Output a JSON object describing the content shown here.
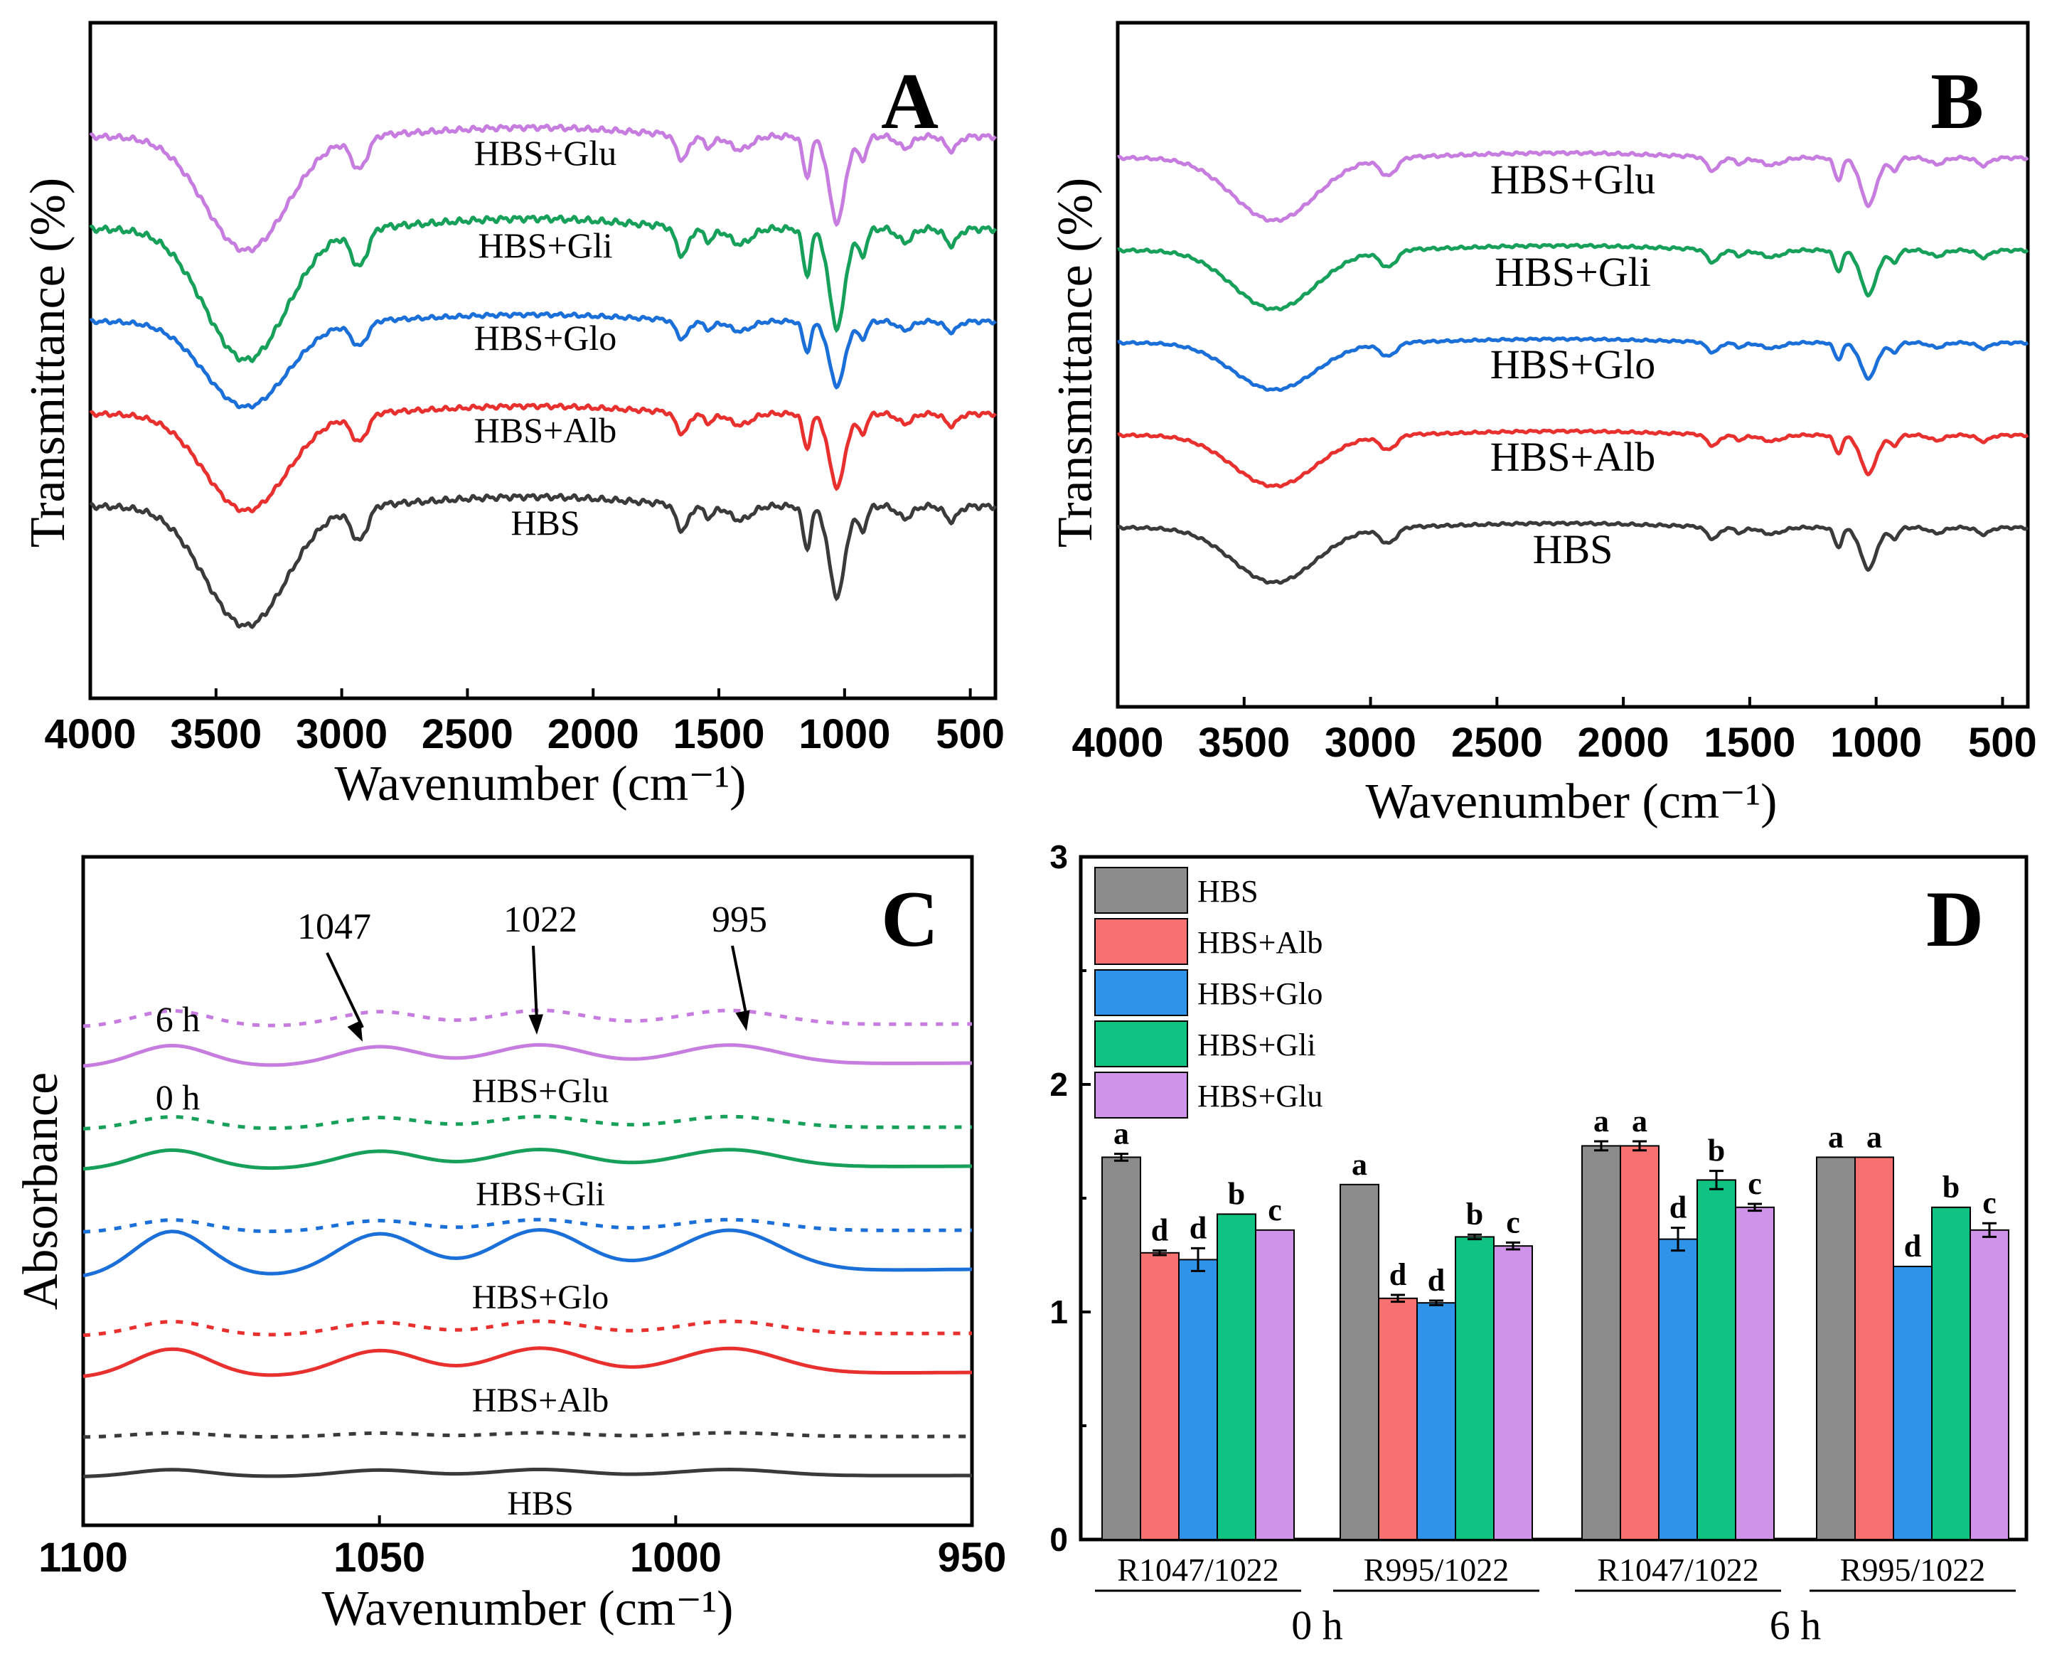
{
  "figure": {
    "panels": [
      "A",
      "B",
      "C",
      "D"
    ]
  },
  "chart_data": [
    {
      "panel": "A",
      "type": "line",
      "title": "",
      "xlabel": "Wavenumber (cm⁻¹)",
      "ylabel": "Transmittance (%)",
      "xlim": [
        4000,
        400
      ],
      "x_reversed": true,
      "xticks": [
        4000,
        3500,
        3000,
        2500,
        2000,
        1500,
        1000,
        500
      ],
      "yticks_shown": false,
      "series": [
        {
          "name": "HBS+Glu",
          "color": "#c77de0",
          "offset": 4,
          "amp": 1.0
        },
        {
          "name": "HBS+Gli",
          "color": "#17a05a",
          "offset": 3,
          "amp": 1.15
        },
        {
          "name": "HBS+Glo",
          "color": "#1a6fd8",
          "offset": 2,
          "amp": 0.75
        },
        {
          "name": "HBS+Alb",
          "color": "#e8302e",
          "offset": 1,
          "amp": 0.85
        },
        {
          "name": "HBS",
          "color": "#3a3a3a",
          "offset": 0,
          "amp": 1.05
        }
      ]
    },
    {
      "panel": "B",
      "type": "line",
      "title": "",
      "xlabel": "Wavenumber (cm⁻¹)",
      "ylabel": "Transmittance (%)",
      "xlim": [
        4000,
        400
      ],
      "x_reversed": true,
      "xticks": [
        4000,
        3500,
        3000,
        2500,
        2000,
        1500,
        1000,
        500
      ],
      "yticks_shown": false,
      "series": [
        {
          "name": "HBS+Glu",
          "color": "#c77de0",
          "offset": 4,
          "amp": 0.8
        },
        {
          "name": "HBS+Gli",
          "color": "#17a05a",
          "offset": 3,
          "amp": 0.75
        },
        {
          "name": "HBS+Glo",
          "color": "#1a6fd8",
          "offset": 2,
          "amp": 0.6
        },
        {
          "name": "HBS+Alb",
          "color": "#e8302e",
          "offset": 1,
          "amp": 0.65
        },
        {
          "name": "HBS",
          "color": "#3a3a3a",
          "offset": 0,
          "amp": 0.7
        }
      ]
    },
    {
      "panel": "C",
      "type": "line",
      "title": "",
      "xlabel": "Wavenumber (cm⁻¹)",
      "ylabel": "Absorbance",
      "xlim": [
        1100,
        950
      ],
      "x_reversed": true,
      "xticks": [
        1100,
        1050,
        1000,
        950
      ],
      "yticks_shown": false,
      "peaks": [
        1047,
        1022,
        995
      ],
      "time_labels": [
        "6 h",
        "0 h"
      ],
      "series": [
        {
          "name": "HBS+Glu",
          "color": "#c77de0",
          "offset": 4,
          "amp_0h": 0.6,
          "amp_6h": 0.45
        },
        {
          "name": "HBS+Gli",
          "color": "#17a05a",
          "offset": 3,
          "amp_0h": 0.55,
          "amp_6h": 0.35
        },
        {
          "name": "HBS+Glo",
          "color": "#1a6fd8",
          "offset": 2,
          "amp_0h": 1.3,
          "amp_6h": 0.35
        },
        {
          "name": "HBS+Alb",
          "color": "#e8302e",
          "offset": 1,
          "amp_0h": 0.8,
          "amp_6h": 0.4
        },
        {
          "name": "HBS",
          "color": "#3a3a3a",
          "offset": 0,
          "amp_0h": 0.2,
          "amp_6h": 0.12
        }
      ]
    },
    {
      "panel": "D",
      "type": "bar",
      "title": "",
      "xlabel": "",
      "ylabel": "",
      "ylim": [
        0,
        3
      ],
      "yticks": [
        0,
        1,
        2,
        3
      ],
      "categories": [
        "R1047/1022",
        "R995/1022",
        "R1047/1022",
        "R995/1022"
      ],
      "time_groups": [
        {
          "label": "0 h",
          "categories": [
            0,
            1
          ]
        },
        {
          "label": "6 h",
          "categories": [
            2,
            3
          ]
        }
      ],
      "legend_position": "top-left",
      "series": [
        {
          "name": "HBS",
          "color": "#8c8c8c",
          "values": [
            1.68,
            1.56,
            1.73,
            1.68
          ],
          "errors": [
            0.015,
            0.0,
            0.02,
            0.0
          ],
          "letters": [
            "a",
            "a",
            "a",
            "a"
          ]
        },
        {
          "name": "HBS+Alb",
          "color": "#f87171",
          "values": [
            1.26,
            1.06,
            1.73,
            1.68
          ],
          "errors": [
            0.01,
            0.015,
            0.02,
            0.0
          ],
          "letters": [
            "d",
            "d",
            "a",
            "a"
          ]
        },
        {
          "name": "HBS+Glo",
          "color": "#2f93ea",
          "values": [
            1.23,
            1.04,
            1.32,
            1.2
          ],
          "errors": [
            0.05,
            0.01,
            0.05,
            0.0
          ],
          "letters": [
            "d",
            "d",
            "d",
            "d"
          ]
        },
        {
          "name": "HBS+Gli",
          "color": "#10c383",
          "values": [
            1.43,
            1.33,
            1.58,
            1.46
          ],
          "errors": [
            0.0,
            0.01,
            0.04,
            0.0
          ],
          "letters": [
            "b",
            "b",
            "b",
            "b"
          ]
        },
        {
          "name": "HBS+Glu",
          "color": "#cf94ea",
          "values": [
            1.36,
            1.29,
            1.46,
            1.36
          ],
          "errors": [
            0.0,
            0.015,
            0.015,
            0.03
          ],
          "letters": [
            "c",
            "c",
            "c",
            "c"
          ]
        }
      ]
    }
  ]
}
